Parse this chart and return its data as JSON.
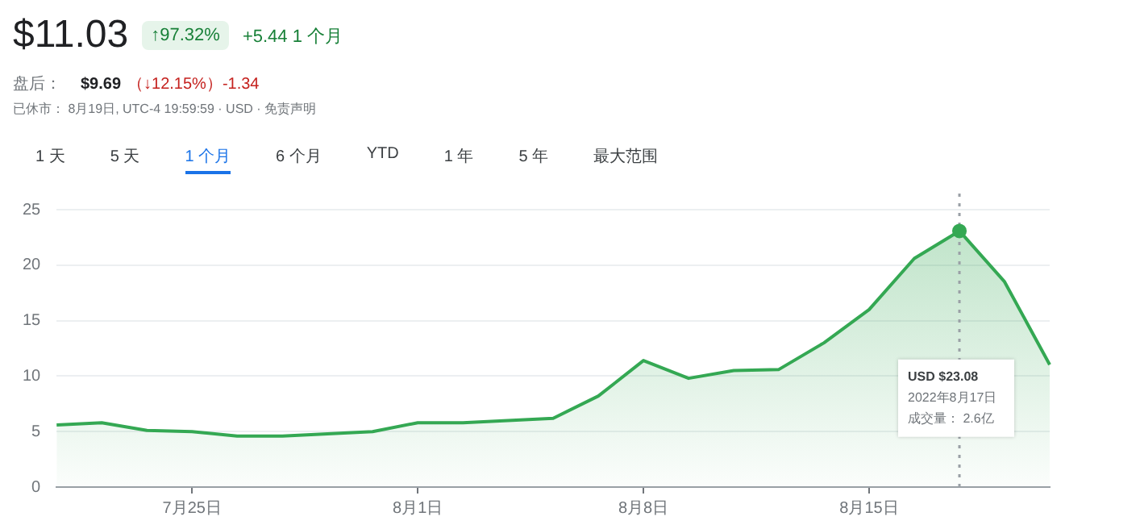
{
  "chart_data": {
    "type": "area",
    "title": "$11.03",
    "annotations": [
      "↑97.32%",
      "+5.44 1 个月",
      "盘后：",
      "$9.69",
      "（↓12.15%）-1.34",
      "已休市： 8月19日, UTC-4 19:59:59 · USD · 免责声明",
      "1 天",
      "5 天",
      "1 个月",
      "6 个月",
      "YTD",
      "1 年",
      "5 年",
      "最大范围",
      "USD $23.08",
      "2022年8月17日",
      "成交量： 2.6亿"
    ],
    "categories": [
      null,
      null,
      null,
      "7月25日",
      null,
      null,
      null,
      null,
      "8月1日",
      null,
      null,
      null,
      null,
      "8月8日",
      null,
      null,
      null,
      null,
      "8月15日",
      null,
      null,
      null,
      null
    ],
    "series": [
      {
        "color": "#34a853",
        "values": [
          5.6,
          5.8,
          5.1,
          5.0,
          4.6,
          4.6,
          4.8,
          5.0,
          5.8,
          5.8,
          6.0,
          6.2,
          8.2,
          11.4,
          9.8,
          10.5,
          10.6,
          13.0,
          16.0,
          20.6,
          23.08,
          18.5,
          11.03
        ]
      }
    ],
    "ylim": [
      0,
      25
    ],
    "yticks": [
      0,
      5,
      10,
      15,
      20,
      25
    ],
    "grid": "y",
    "legend": false,
    "marker": "none",
    "line_style": "solid"
  }
}
